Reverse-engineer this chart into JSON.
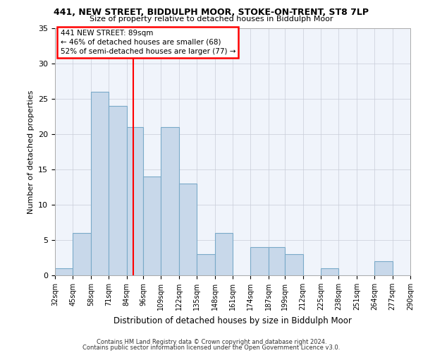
{
  "title1": "441, NEW STREET, BIDDULPH MOOR, STOKE-ON-TRENT, ST8 7LP",
  "title2": "Size of property relative to detached houses in Biddulph Moor",
  "xlabel": "Distribution of detached houses by size in Biddulph Moor",
  "ylabel": "Number of detached properties",
  "bins": [
    32,
    45,
    58,
    71,
    84,
    96,
    109,
    122,
    135,
    148,
    161,
    174,
    187,
    199,
    212,
    225,
    238,
    251,
    264,
    277,
    290
  ],
  "counts": [
    1,
    6,
    26,
    24,
    21,
    14,
    21,
    13,
    3,
    6,
    0,
    4,
    4,
    3,
    0,
    1,
    0,
    0,
    2,
    0
  ],
  "bar_color": "#c8d8ea",
  "bar_edge_color": "#7aaac8",
  "vline_x": 89,
  "vline_color": "red",
  "ylim": [
    0,
    35
  ],
  "yticks": [
    0,
    5,
    10,
    15,
    20,
    25,
    30,
    35
  ],
  "annotation_title": "441 NEW STREET: 89sqm",
  "annotation_line1": "← 46% of detached houses are smaller (68)",
  "annotation_line2": "52% of semi-detached houses are larger (77) →",
  "annotation_box_color": "red",
  "footer1": "Contains HM Land Registry data © Crown copyright and database right 2024.",
  "footer2": "Contains public sector information licensed under the Open Government Licence v3.0.",
  "bg_color": "#ffffff",
  "plot_bg_color": "#f0f4fb"
}
